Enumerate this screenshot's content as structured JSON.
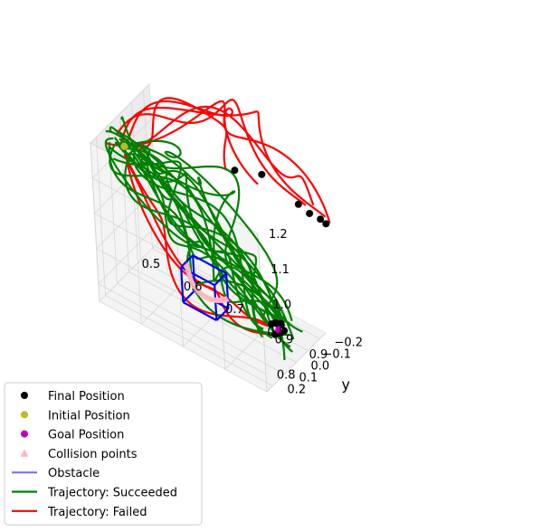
{
  "chart_data": {
    "type": "scatter",
    "projection": "3d",
    "title": "",
    "xlabel": "",
    "ylabel": "y",
    "zlabel": "",
    "grid": true,
    "legend_position": "bottom-left",
    "x_ticks": [
      "0.5",
      "0.6",
      "0.7",
      "0.8",
      "0.9"
    ],
    "y_ticks": [
      "−0.2",
      "−0.1",
      "0.0",
      "0.1",
      "0.2"
    ],
    "z_ticks": [
      "0.8",
      "0.9",
      "1.0",
      "1.1",
      "1.2"
    ],
    "colors": {
      "final": "#000000",
      "initial": "#bcbd22",
      "goal": "#bf00bf",
      "collision": "#ffb6c1",
      "obstacle": "#0000ff",
      "succeeded": "#008000",
      "failed": "#ff0000"
    },
    "legend": [
      {
        "key": "final",
        "label": "Final Position",
        "marker": "dot"
      },
      {
        "key": "initial",
        "label": "Initial Position",
        "marker": "dot"
      },
      {
        "key": "goal",
        "label": "Goal Position",
        "marker": "dot"
      },
      {
        "key": "collision",
        "label": "Collision points",
        "marker": "triangle"
      },
      {
        "key": "obstacle",
        "label": "Obstacle",
        "marker": "line"
      },
      {
        "key": "succeeded",
        "label": "Trajectory: Succeeded",
        "marker": "line"
      },
      {
        "key": "failed",
        "label": "Trajectory: Failed",
        "marker": "line"
      }
    ],
    "points": {
      "initial": [
        [
          0.5,
          -0.02,
          1.1
        ]
      ],
      "goal": [
        [
          0.88,
          0.06,
          0.85
        ]
      ],
      "final_failed": [
        [
          0.72,
          -0.18,
          1.12
        ],
        [
          0.78,
          -0.2,
          1.14
        ],
        [
          0.86,
          -0.22,
          1.1
        ],
        [
          0.88,
          -0.24,
          1.08
        ],
        [
          0.9,
          -0.26,
          1.07
        ],
        [
          0.91,
          -0.27,
          1.06
        ]
      ],
      "final_succeeded": [
        [
          0.87,
          0.05,
          0.86
        ],
        [
          0.88,
          0.06,
          0.84
        ],
        [
          0.89,
          0.05,
          0.85
        ],
        [
          0.88,
          0.07,
          0.87
        ],
        [
          0.87,
          0.06,
          0.83
        ],
        [
          0.89,
          0.07,
          0.86
        ],
        [
          0.86,
          0.05,
          0.85
        ],
        [
          0.88,
          0.04,
          0.86
        ]
      ]
    },
    "obstacle_box": {
      "x": [
        0.66,
        0.74
      ],
      "y": [
        0.0,
        0.1
      ],
      "z": [
        0.8,
        0.9
      ]
    }
  }
}
